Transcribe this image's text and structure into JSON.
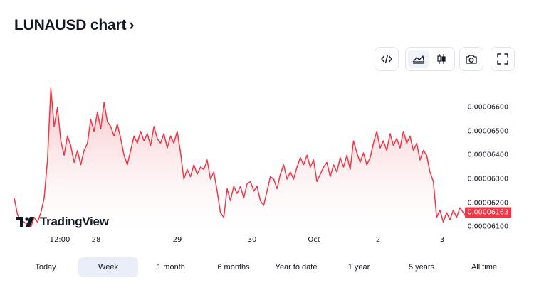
{
  "header": {
    "title": "LUNAUSD chart",
    "chevron": "›"
  },
  "toolbar": {
    "buttons": [
      {
        "icon": "code-embed-icon"
      },
      {
        "icon": "area-chart-icon",
        "active": true
      },
      {
        "icon": "candlestick-icon"
      },
      {
        "icon": "camera-icon"
      },
      {
        "icon": "fullscreen-icon"
      }
    ]
  },
  "chart_data": {
    "type": "area",
    "symbol": "LUNAUSD",
    "ylabels": [
      "0.00006600",
      "0.00006500",
      "0.00006400",
      "0.00006300",
      "0.00006200",
      "0.00006100"
    ],
    "yticks": [
      6.6e-05,
      6.5e-05,
      6.4e-05,
      6.3e-05,
      6.2e-05,
      6.1e-05
    ],
    "ylim": [
      6.08e-05,
      6.71e-05
    ],
    "xlabels": [
      "12:00",
      "28",
      "29",
      "30",
      "Oct",
      "2",
      "3"
    ],
    "last_price": "0.00006163",
    "series": [
      {
        "values": [
          6.22e-05,
          6.15e-05,
          6.13e-05,
          6.12e-05,
          6.11e-05,
          6.1e-05,
          6.14e-05,
          6.12e-05,
          6.16e-05,
          6.22e-05,
          6.38e-05,
          6.68e-05,
          6.52e-05,
          6.6e-05,
          6.46e-05,
          6.4e-05,
          6.48e-05,
          6.44e-05,
          6.37e-05,
          6.42e-05,
          6.36e-05,
          6.42e-05,
          6.45e-05,
          6.55e-05,
          6.5e-05,
          6.58e-05,
          6.51e-05,
          6.62e-05,
          6.54e-05,
          6.52e-05,
          6.48e-05,
          6.53e-05,
          6.47e-05,
          6.4e-05,
          6.36e-05,
          6.42e-05,
          6.48e-05,
          6.45e-05,
          6.5e-05,
          6.46e-05,
          6.49e-05,
          6.44e-05,
          6.52e-05,
          6.47e-05,
          6.45e-05,
          6.49e-05,
          6.43e-05,
          6.48e-05,
          6.45e-05,
          6.5e-05,
          6.41e-05,
          6.3e-05,
          6.34e-05,
          6.31e-05,
          6.36e-05,
          6.32e-05,
          6.35e-05,
          6.34e-05,
          6.38e-05,
          6.3e-05,
          6.33e-05,
          6.25e-05,
          6.16e-05,
          6.14e-05,
          6.26e-05,
          6.21e-05,
          6.27e-05,
          6.24e-05,
          6.27e-05,
          6.22e-05,
          6.28e-05,
          6.29e-05,
          6.25e-05,
          6.27e-05,
          6.21e-05,
          6.19e-05,
          6.25e-05,
          6.31e-05,
          6.3e-05,
          6.26e-05,
          6.32e-05,
          6.36e-05,
          6.3e-05,
          6.33e-05,
          6.3e-05,
          6.35e-05,
          6.39e-05,
          6.36e-05,
          6.4e-05,
          6.35e-05,
          6.38e-05,
          6.29e-05,
          6.32e-05,
          6.35e-05,
          6.37e-05,
          6.31e-05,
          6.36e-05,
          6.33e-05,
          6.39e-05,
          6.35e-05,
          6.4e-05,
          6.34e-05,
          6.46e-05,
          6.41e-05,
          6.37e-05,
          6.41e-05,
          6.36e-05,
          6.39e-05,
          6.45e-05,
          6.5e-05,
          6.43e-05,
          6.46e-05,
          6.42e-05,
          6.49e-05,
          6.44e-05,
          6.47e-05,
          6.43e-05,
          6.5e-05,
          6.45e-05,
          6.48e-05,
          6.42e-05,
          6.45e-05,
          6.38e-05,
          6.42e-05,
          6.4e-05,
          6.33e-05,
          6.29e-05,
          6.14e-05,
          6.17e-05,
          6.12e-05,
          6.16e-05,
          6.13e-05,
          6.17e-05,
          6.14e-05,
          6.18e-05,
          6.16e-05,
          6.14e-05,
          6.16e-05
        ]
      }
    ]
  },
  "branding": {
    "logo_text": "TradingView"
  },
  "ranges": [
    {
      "label": "Today"
    },
    {
      "label": "Week",
      "active": true
    },
    {
      "label": "1 month"
    },
    {
      "label": "6 months"
    },
    {
      "label": "Year to date"
    },
    {
      "label": "1 year"
    },
    {
      "label": "5 years"
    },
    {
      "label": "All time"
    }
  ],
  "colors": {
    "line": "#f23645",
    "fill_top": "#f7b7bd",
    "fill_bottom": "#ffffff",
    "badge": "#f23645"
  }
}
